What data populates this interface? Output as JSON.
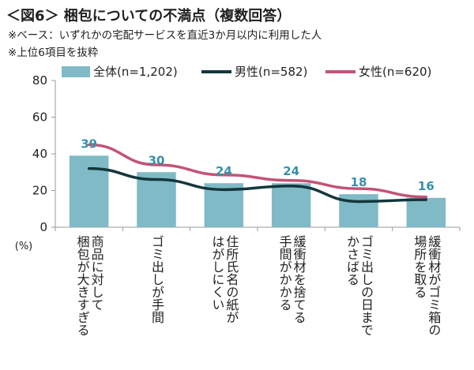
{
  "title": "＜図6＞ 梱包についての不満点（複数回答）",
  "notes": [
    "※ベース：いずれかの宅配サービスを直近3か月以内に利用した人",
    "※上位6項目を抜粋"
  ],
  "chart_data": {
    "type": "bar",
    "title": "＜図6＞ 梱包についての不満点（複数回答）",
    "categories": [
      "商品に対して\n梱包が大きすぎる",
      "ゴミ出しが手間",
      "住所氏名の紙が\nはがしにくい",
      "緩衝材を捨てる\n手間がかかる",
      "ゴミ出しの日まで\nかさばる",
      "緩衝材がゴミ箱の\n場所を取る"
    ],
    "ylabel": "(%)",
    "ylim": [
      0,
      80
    ],
    "yticks": [
      0,
      20,
      40,
      60,
      80
    ],
    "grid": false,
    "legend_position": "top",
    "series": [
      {
        "name": "全体(n=1,202)",
        "type": "bar",
        "color": "#7fbac6",
        "values": [
          39,
          30,
          24,
          24,
          18,
          16
        ],
        "data_labels": [
          "39",
          "30",
          "24",
          "24",
          "18",
          "16"
        ]
      },
      {
        "name": "男性(n=582)",
        "type": "line",
        "color": "#13373c",
        "values": [
          32,
          26,
          20.5,
          22.5,
          14,
          15
        ]
      },
      {
        "name": "女性(n=620)",
        "type": "line",
        "color": "#c25476",
        "values": [
          45,
          34,
          28.5,
          25.5,
          21,
          16.5
        ]
      }
    ]
  }
}
